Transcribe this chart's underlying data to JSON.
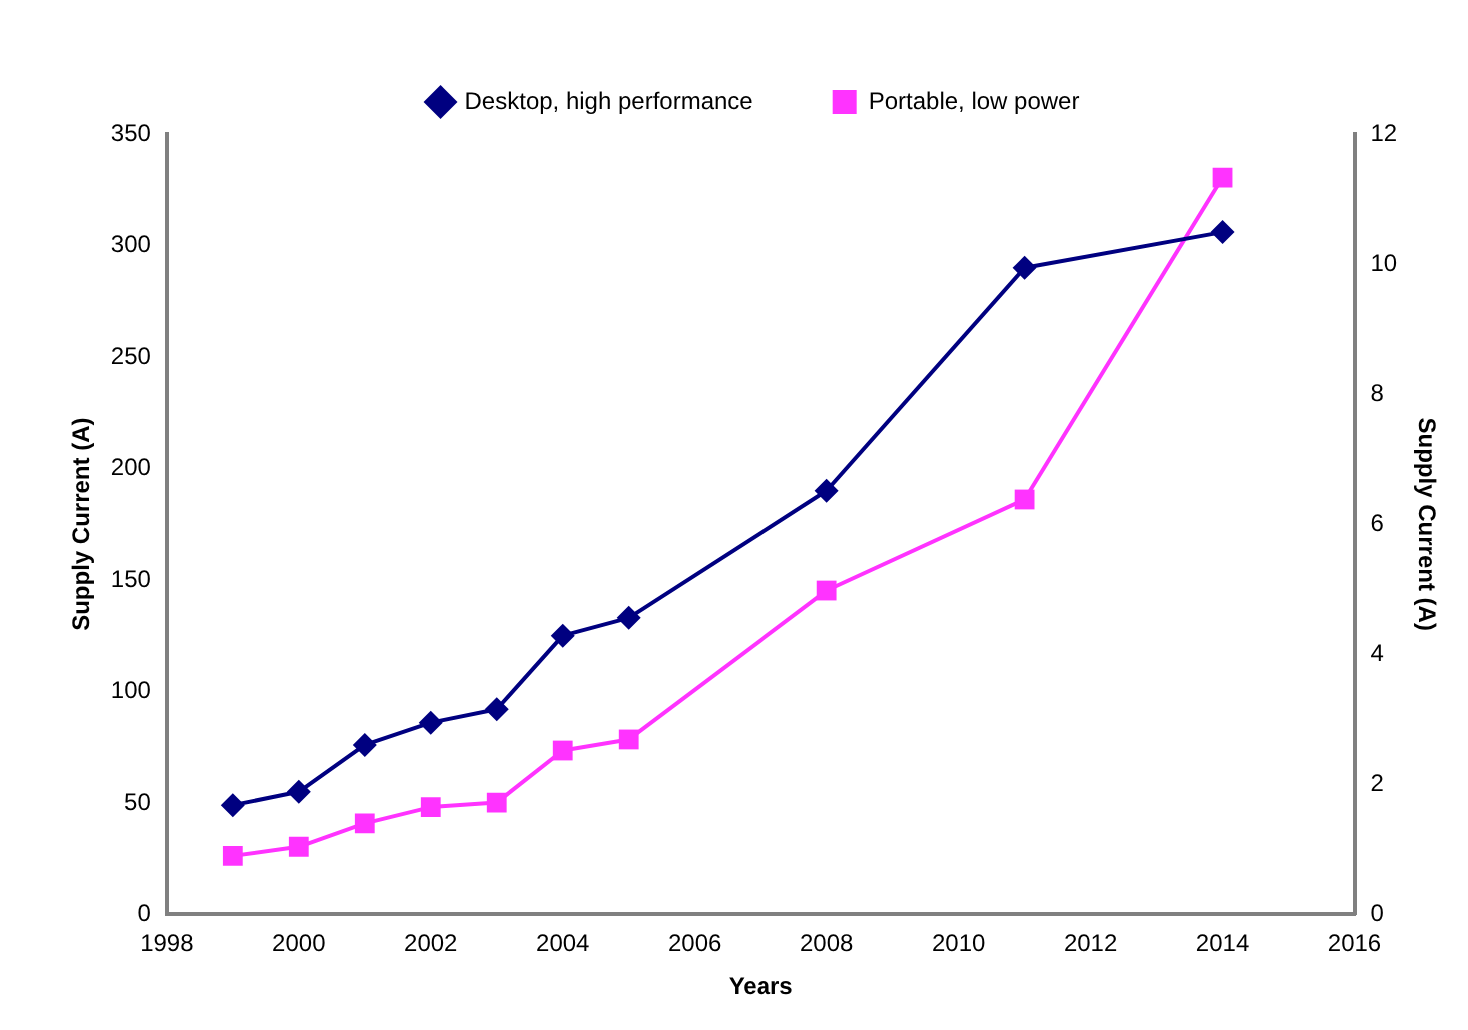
{
  "chart_data": {
    "type": "line",
    "xlabel": "Years",
    "ylabel": "Supply Current (A)",
    "y2label": "Supply Current (A)",
    "x": [
      1999,
      2000,
      2001,
      2002,
      2003,
      2004,
      2005,
      2008,
      2011,
      2014
    ],
    "series": [
      {
        "name": "Desktop, high performance",
        "color": "#000080",
        "marker": "diamond",
        "values": [
          49,
          55,
          76,
          86,
          92,
          125,
          133,
          190,
          290,
          306
        ]
      },
      {
        "name": "Portable, low power",
        "color": "#ff33ff",
        "marker": "square",
        "axis": "y2",
        "values": [
          0.9,
          1.04,
          1.4,
          1.65,
          1.72,
          2.52,
          2.69,
          4.98,
          6.38,
          11.33
        ]
      }
    ],
    "xlim": [
      1998,
      2016
    ],
    "xticks": [
      1998,
      2000,
      2002,
      2004,
      2006,
      2008,
      2010,
      2012,
      2014,
      2016
    ],
    "ylim": [
      0,
      350
    ],
    "yticks": [
      0,
      50,
      100,
      150,
      200,
      250,
      300,
      350
    ],
    "y2lim": [
      0,
      12
    ],
    "y2ticks": [
      0,
      2,
      4,
      6,
      8,
      10,
      12
    ],
    "grid": false,
    "legend": "top"
  }
}
